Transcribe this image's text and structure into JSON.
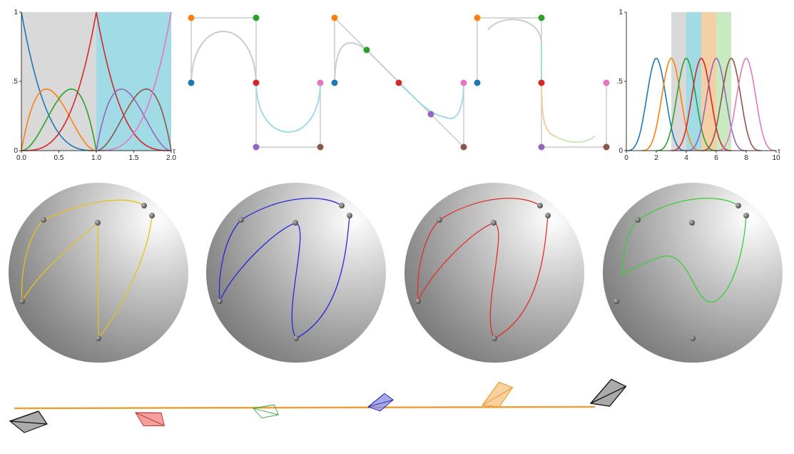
{
  "colors": {
    "blue": "#1f77b4",
    "orange": "#ff7f0e",
    "green": "#2ca02c",
    "red": "#d62728",
    "purple": "#9467bd",
    "brown": "#8c564b",
    "pink": "#e377c2",
    "band_gray": "#d9d9d9",
    "band_cyan": "#a0dbe6",
    "band_orange": "#f3cfa3",
    "band_green": "#c9e9c1",
    "control_line": "#c8c8c8",
    "curve_gray": "#cccccc",
    "sphere_yellow": "#e6c21e",
    "sphere_blue": "#2626d9",
    "sphere_red": "#e0302a",
    "sphere_green": "#3ccc3c",
    "track": "#e6a23c"
  },
  "chart_data": [
    {
      "type": "line",
      "title": "",
      "xlabel": "",
      "ylabel": "",
      "xlim": [
        0,
        2
      ],
      "ylim": [
        0,
        1
      ],
      "xticks": [
        "0.0",
        "0.5",
        "1.0",
        "1.5",
        "2.0"
      ],
      "yticks": [
        "0",
        ".5",
        "1"
      ],
      "x_axis_end_label": "τ",
      "bands": [
        {
          "from": 0,
          "to": 1,
          "color": "band_gray"
        },
        {
          "from": 1,
          "to": 2,
          "color": "band_cyan"
        }
      ],
      "series": [
        {
          "color": "blue",
          "basis": "b0",
          "segment": 0
        },
        {
          "color": "orange",
          "basis": "b1",
          "segment": 0
        },
        {
          "color": "green",
          "basis": "b2",
          "segment": 0
        },
        {
          "color": "red",
          "basis": "b3",
          "segment": 0
        },
        {
          "color": "red",
          "basis": "b0",
          "segment": 1
        },
        {
          "color": "purple",
          "basis": "b1",
          "segment": 1
        },
        {
          "color": "brown",
          "basis": "b2",
          "segment": 1
        },
        {
          "color": "pink",
          "basis": "b3",
          "segment": 1
        }
      ]
    },
    {
      "type": "line",
      "title": "",
      "xlabel": "",
      "ylabel": "",
      "xlim": [
        0,
        10
      ],
      "ylim": [
        0,
        1
      ],
      "xticks": [
        "0",
        "2",
        "4",
        "6",
        "8",
        "10"
      ],
      "yticks": [
        "0",
        ".5",
        "1"
      ],
      "x_axis_end_label": "τ",
      "bands": [
        {
          "from": 3,
          "to": 4,
          "color": "band_gray"
        },
        {
          "from": 4,
          "to": 5,
          "color": "band_cyan"
        },
        {
          "from": 5,
          "to": 6,
          "color": "band_orange"
        },
        {
          "from": 6,
          "to": 7,
          "color": "band_green"
        }
      ],
      "peak": 0.6667,
      "series": [
        {
          "color": "blue",
          "center": 2
        },
        {
          "color": "orange",
          "center": 3
        },
        {
          "color": "green",
          "center": 4
        },
        {
          "color": "red",
          "center": 5
        },
        {
          "color": "purple",
          "center": 6
        },
        {
          "color": "brown",
          "center": 7
        },
        {
          "color": "pink",
          "center": 8
        }
      ]
    }
  ]
}
